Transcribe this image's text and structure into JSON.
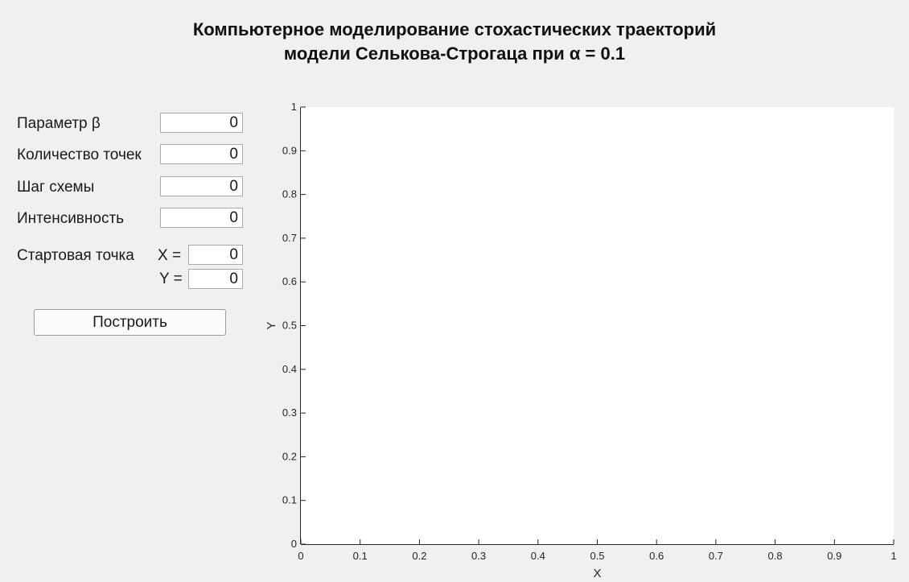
{
  "title": {
    "line1": "Компьютерное моделирование стохастических траекторий",
    "line2": "модели Селькова-Строгаца при α = 0.1"
  },
  "form": {
    "beta_label": "Параметр β",
    "beta_value": "0",
    "points_label": "Количество точек",
    "points_value": "0",
    "step_label": "Шаг схемы",
    "step_value": "0",
    "intensity_label": "Интенсивность",
    "intensity_value": "0",
    "start_label": "Стартовая точка",
    "start_x_label": "X =",
    "start_x_value": "0",
    "start_y_label": "Y =",
    "start_y_value": "0",
    "build_button": "Построить"
  },
  "chart_data": {
    "type": "line",
    "series": [],
    "xlabel": "X",
    "ylabel": "Y",
    "xlim": [
      0,
      1
    ],
    "ylim": [
      0,
      1
    ],
    "xticks": [
      "0",
      "0.1",
      "0.2",
      "0.3",
      "0.4",
      "0.5",
      "0.6",
      "0.7",
      "0.8",
      "0.9",
      "1"
    ],
    "yticks": [
      "0",
      "0.1",
      "0.2",
      "0.3",
      "0.4",
      "0.5",
      "0.6",
      "0.7",
      "0.8",
      "0.9",
      "1"
    ],
    "grid": false,
    "background": "#ffffff"
  }
}
